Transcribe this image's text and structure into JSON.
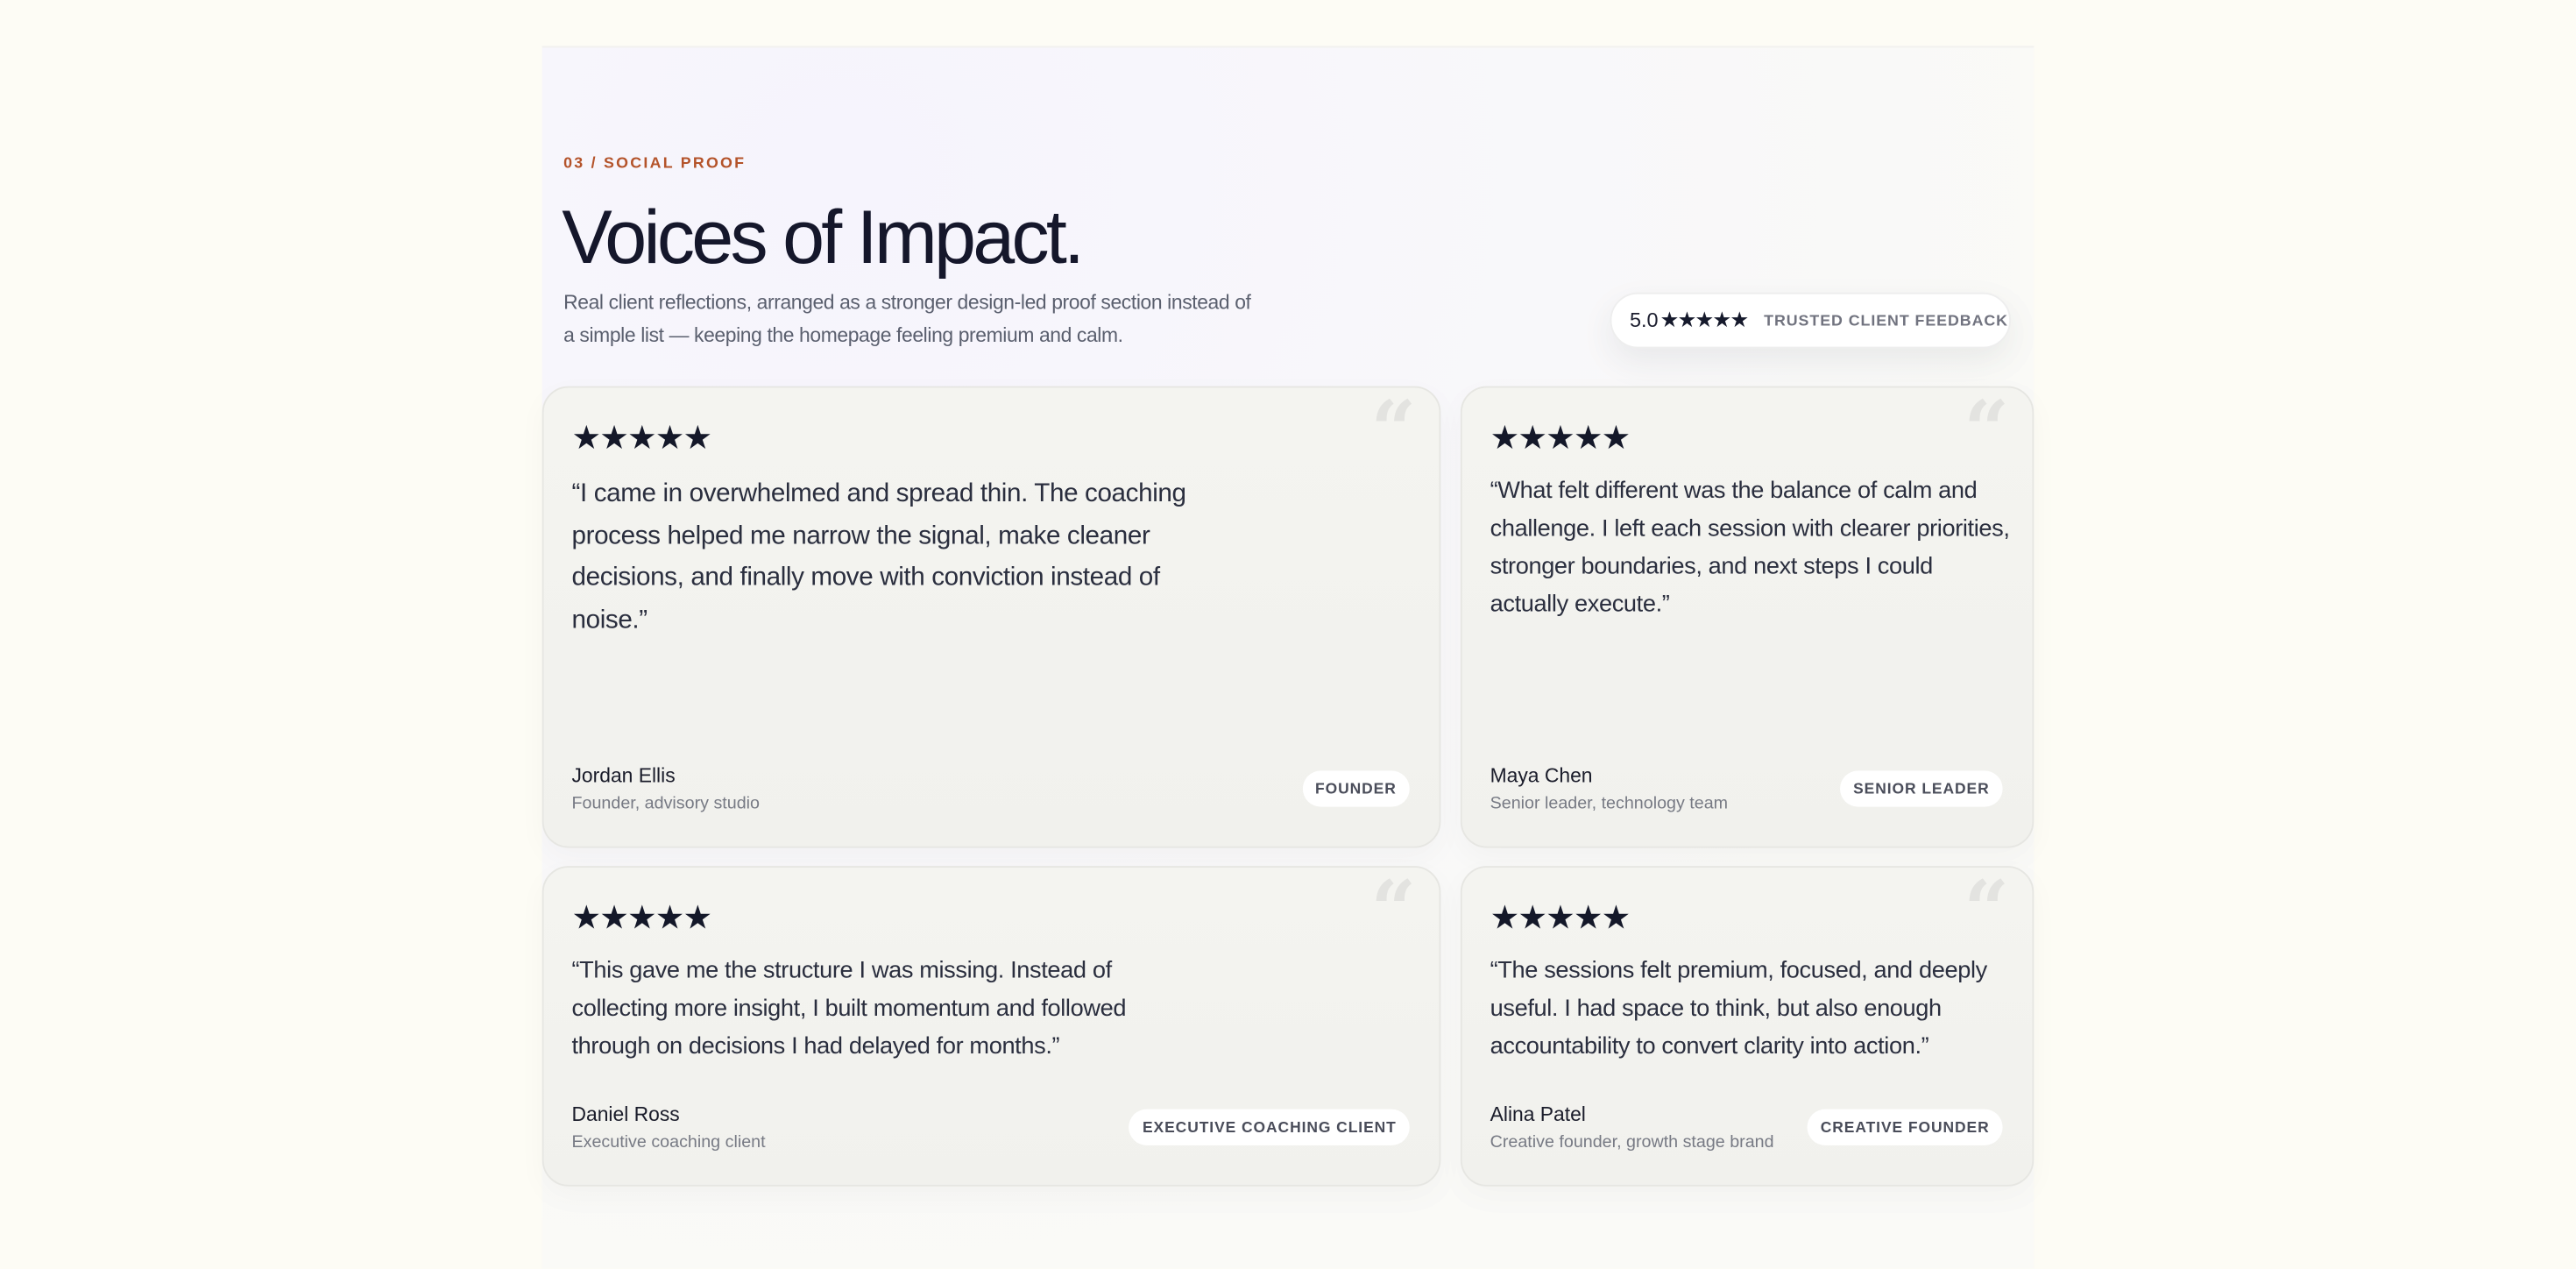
{
  "section": {
    "eyebrow": "03 / SOCIAL PROOF",
    "title": "Voices of Impact.",
    "subtitle": "Real client reflections, arranged as a stronger design-led proof section instead of a simple list — keeping the homepage feeling premium and calm."
  },
  "badge": {
    "score": "5.0",
    "stars": "★★★★★",
    "label": "TRUSTED CLIENT FEEDBACK",
    "rating": 5
  },
  "colors": {
    "accent": "#b4532a",
    "ink": "#15172b",
    "page_bg": "#fdfcf5"
  },
  "testimonials": [
    {
      "stars": "★★★★★",
      "rating": 5,
      "quote_icon": "quote-mark-icon",
      "quote": "“I came in overwhelmed and spread thin. The coaching process helped me narrow the signal, make cleaner decisions, and finally move with conviction instead of noise.”",
      "name": "Jordan Ellis",
      "role": "Founder, advisory studio",
      "tag": "FOUNDER"
    },
    {
      "stars": "★★★★★",
      "rating": 5,
      "quote_icon": "quote-mark-icon",
      "quote": "“What felt different was the balance of calm and challenge. I left each session with clearer priorities, stronger boundaries, and next steps I could actually execute.”",
      "name": "Maya Chen",
      "role": "Senior leader, technology team",
      "tag": "SENIOR LEADER"
    },
    {
      "stars": "★★★★★",
      "rating": 5,
      "quote_icon": "quote-mark-icon",
      "quote": "“This gave me the structure I was missing. Instead of collecting more insight, I built momentum and followed through on decisions I had delayed for months.”",
      "name": "Daniel Ross",
      "role": "Executive coaching client",
      "tag": "EXECUTIVE COACHING CLIENT"
    },
    {
      "stars": "★★★★★",
      "rating": 5,
      "quote_icon": "quote-mark-icon",
      "quote": "“The sessions felt premium, focused, and deeply useful. I had space to think, but also enough accountability to convert clarity into action.”",
      "name": "Alina Patel",
      "role": "Creative founder, growth stage brand",
      "tag": "CREATIVE FOUNDER"
    }
  ]
}
